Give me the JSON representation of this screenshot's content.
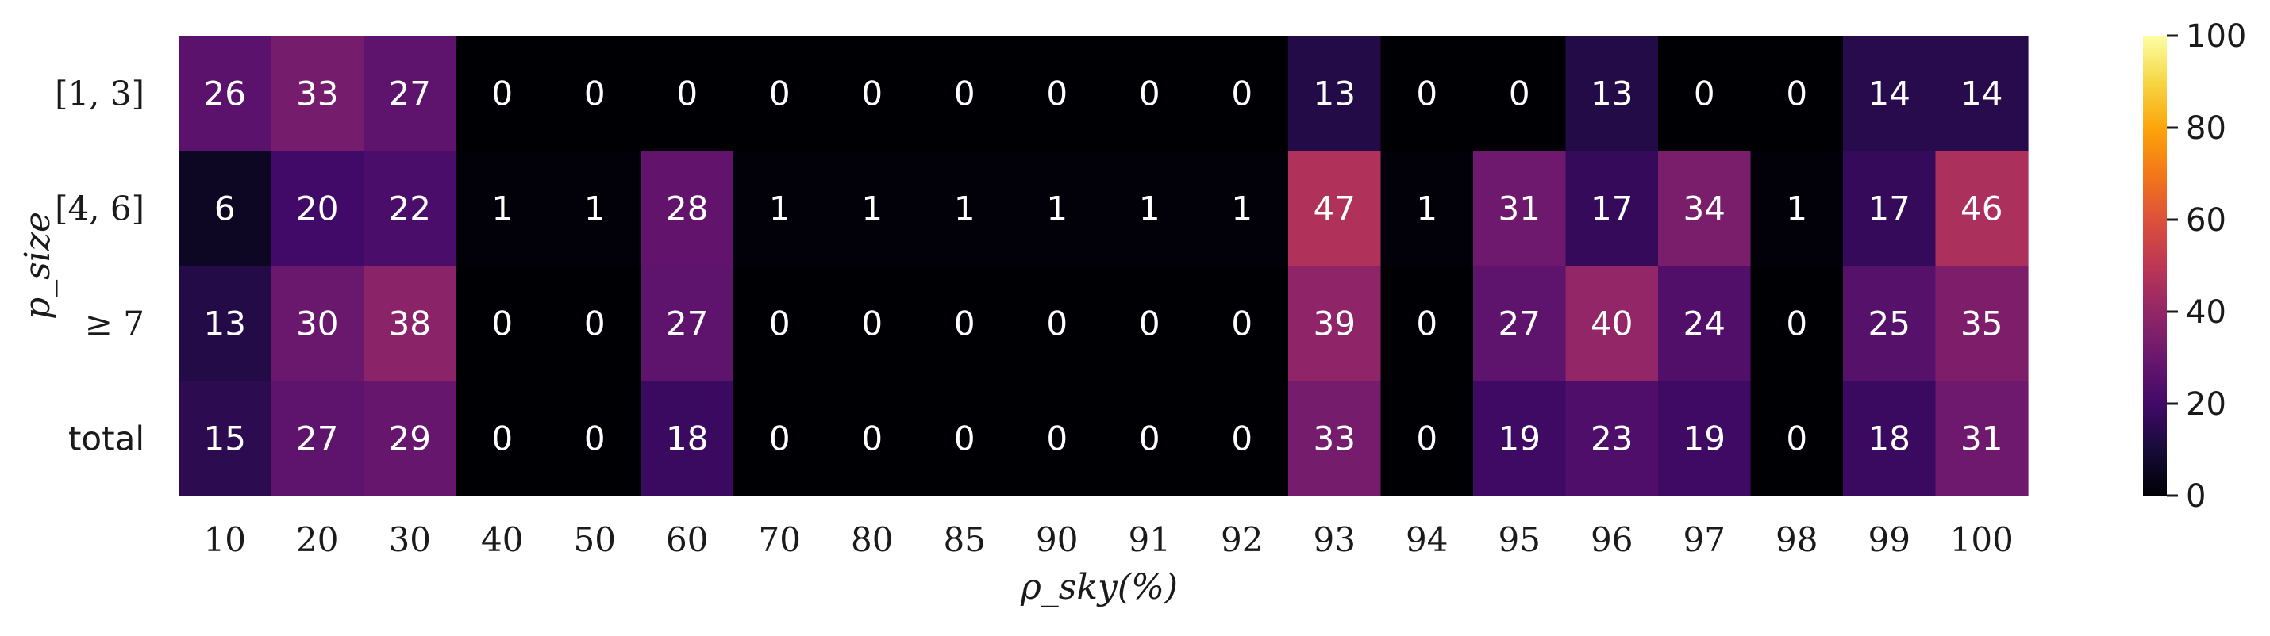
{
  "chart_data": {
    "type": "heatmap",
    "colormap": "inferno",
    "vmin": 0,
    "vmax": 100,
    "xlabel": "ρ_sky(%)",
    "ylabel": "p_size",
    "x_categories": [
      "10",
      "20",
      "30",
      "40",
      "50",
      "60",
      "70",
      "80",
      "85",
      "90",
      "91",
      "92",
      "93",
      "94",
      "95",
      "96",
      "97",
      "98",
      "99",
      "100"
    ],
    "y_categories": [
      "[1, 3]",
      "[4, 6]",
      "≥ 7",
      "total"
    ],
    "values": [
      [
        26,
        33,
        27,
        0,
        0,
        0,
        0,
        0,
        0,
        0,
        0,
        0,
        13,
        0,
        0,
        13,
        0,
        0,
        14,
        14
      ],
      [
        6,
        20,
        22,
        1,
        1,
        28,
        1,
        1,
        1,
        1,
        1,
        1,
        47,
        1,
        31,
        17,
        34,
        1,
        17,
        46
      ],
      [
        13,
        30,
        38,
        0,
        0,
        27,
        0,
        0,
        0,
        0,
        0,
        0,
        39,
        0,
        27,
        40,
        24,
        0,
        25,
        35
      ],
      [
        15,
        27,
        29,
        0,
        0,
        18,
        0,
        0,
        0,
        0,
        0,
        0,
        33,
        0,
        19,
        23,
        19,
        0,
        18,
        31
      ]
    ],
    "colorbar": {
      "ticks": [
        0,
        20,
        40,
        60,
        80,
        100
      ],
      "tick_labels": [
        "0",
        "20",
        "40",
        "60",
        "80",
        "100"
      ]
    }
  }
}
